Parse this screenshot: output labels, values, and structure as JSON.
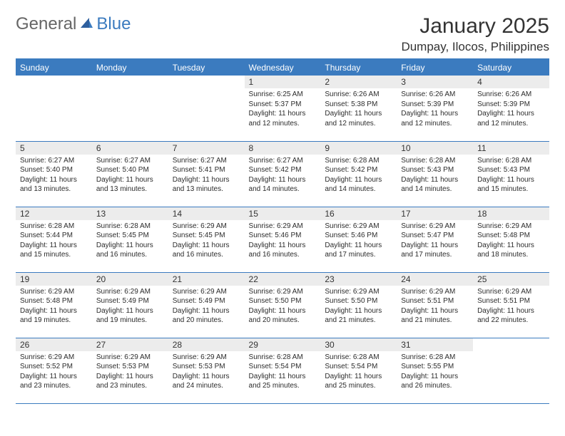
{
  "logo": {
    "general": "General",
    "blue": "Blue"
  },
  "title": "January 2025",
  "location": "Dumpay, Ilocos, Philippines",
  "colors": {
    "header_bg": "#3b7bbf",
    "header_text": "#ffffff",
    "daynum_bg": "#ececec",
    "border": "#3b7bbf",
    "logo_blue": "#3b7bbf",
    "logo_gray": "#666666"
  },
  "day_headers": [
    "Sunday",
    "Monday",
    "Tuesday",
    "Wednesday",
    "Thursday",
    "Friday",
    "Saturday"
  ],
  "weeks": [
    [
      {
        "n": "",
        "sr": "",
        "ss": "",
        "dl": ""
      },
      {
        "n": "",
        "sr": "",
        "ss": "",
        "dl": ""
      },
      {
        "n": "",
        "sr": "",
        "ss": "",
        "dl": ""
      },
      {
        "n": "1",
        "sr": "Sunrise: 6:25 AM",
        "ss": "Sunset: 5:37 PM",
        "dl": "Daylight: 11 hours and 12 minutes."
      },
      {
        "n": "2",
        "sr": "Sunrise: 6:26 AM",
        "ss": "Sunset: 5:38 PM",
        "dl": "Daylight: 11 hours and 12 minutes."
      },
      {
        "n": "3",
        "sr": "Sunrise: 6:26 AM",
        "ss": "Sunset: 5:39 PM",
        "dl": "Daylight: 11 hours and 12 minutes."
      },
      {
        "n": "4",
        "sr": "Sunrise: 6:26 AM",
        "ss": "Sunset: 5:39 PM",
        "dl": "Daylight: 11 hours and 12 minutes."
      }
    ],
    [
      {
        "n": "5",
        "sr": "Sunrise: 6:27 AM",
        "ss": "Sunset: 5:40 PM",
        "dl": "Daylight: 11 hours and 13 minutes."
      },
      {
        "n": "6",
        "sr": "Sunrise: 6:27 AM",
        "ss": "Sunset: 5:40 PM",
        "dl": "Daylight: 11 hours and 13 minutes."
      },
      {
        "n": "7",
        "sr": "Sunrise: 6:27 AM",
        "ss": "Sunset: 5:41 PM",
        "dl": "Daylight: 11 hours and 13 minutes."
      },
      {
        "n": "8",
        "sr": "Sunrise: 6:27 AM",
        "ss": "Sunset: 5:42 PM",
        "dl": "Daylight: 11 hours and 14 minutes."
      },
      {
        "n": "9",
        "sr": "Sunrise: 6:28 AM",
        "ss": "Sunset: 5:42 PM",
        "dl": "Daylight: 11 hours and 14 minutes."
      },
      {
        "n": "10",
        "sr": "Sunrise: 6:28 AM",
        "ss": "Sunset: 5:43 PM",
        "dl": "Daylight: 11 hours and 14 minutes."
      },
      {
        "n": "11",
        "sr": "Sunrise: 6:28 AM",
        "ss": "Sunset: 5:43 PM",
        "dl": "Daylight: 11 hours and 15 minutes."
      }
    ],
    [
      {
        "n": "12",
        "sr": "Sunrise: 6:28 AM",
        "ss": "Sunset: 5:44 PM",
        "dl": "Daylight: 11 hours and 15 minutes."
      },
      {
        "n": "13",
        "sr": "Sunrise: 6:28 AM",
        "ss": "Sunset: 5:45 PM",
        "dl": "Daylight: 11 hours and 16 minutes."
      },
      {
        "n": "14",
        "sr": "Sunrise: 6:29 AM",
        "ss": "Sunset: 5:45 PM",
        "dl": "Daylight: 11 hours and 16 minutes."
      },
      {
        "n": "15",
        "sr": "Sunrise: 6:29 AM",
        "ss": "Sunset: 5:46 PM",
        "dl": "Daylight: 11 hours and 16 minutes."
      },
      {
        "n": "16",
        "sr": "Sunrise: 6:29 AM",
        "ss": "Sunset: 5:46 PM",
        "dl": "Daylight: 11 hours and 17 minutes."
      },
      {
        "n": "17",
        "sr": "Sunrise: 6:29 AM",
        "ss": "Sunset: 5:47 PM",
        "dl": "Daylight: 11 hours and 17 minutes."
      },
      {
        "n": "18",
        "sr": "Sunrise: 6:29 AM",
        "ss": "Sunset: 5:48 PM",
        "dl": "Daylight: 11 hours and 18 minutes."
      }
    ],
    [
      {
        "n": "19",
        "sr": "Sunrise: 6:29 AM",
        "ss": "Sunset: 5:48 PM",
        "dl": "Daylight: 11 hours and 19 minutes."
      },
      {
        "n": "20",
        "sr": "Sunrise: 6:29 AM",
        "ss": "Sunset: 5:49 PM",
        "dl": "Daylight: 11 hours and 19 minutes."
      },
      {
        "n": "21",
        "sr": "Sunrise: 6:29 AM",
        "ss": "Sunset: 5:49 PM",
        "dl": "Daylight: 11 hours and 20 minutes."
      },
      {
        "n": "22",
        "sr": "Sunrise: 6:29 AM",
        "ss": "Sunset: 5:50 PM",
        "dl": "Daylight: 11 hours and 20 minutes."
      },
      {
        "n": "23",
        "sr": "Sunrise: 6:29 AM",
        "ss": "Sunset: 5:50 PM",
        "dl": "Daylight: 11 hours and 21 minutes."
      },
      {
        "n": "24",
        "sr": "Sunrise: 6:29 AM",
        "ss": "Sunset: 5:51 PM",
        "dl": "Daylight: 11 hours and 21 minutes."
      },
      {
        "n": "25",
        "sr": "Sunrise: 6:29 AM",
        "ss": "Sunset: 5:51 PM",
        "dl": "Daylight: 11 hours and 22 minutes."
      }
    ],
    [
      {
        "n": "26",
        "sr": "Sunrise: 6:29 AM",
        "ss": "Sunset: 5:52 PM",
        "dl": "Daylight: 11 hours and 23 minutes."
      },
      {
        "n": "27",
        "sr": "Sunrise: 6:29 AM",
        "ss": "Sunset: 5:53 PM",
        "dl": "Daylight: 11 hours and 23 minutes."
      },
      {
        "n": "28",
        "sr": "Sunrise: 6:29 AM",
        "ss": "Sunset: 5:53 PM",
        "dl": "Daylight: 11 hours and 24 minutes."
      },
      {
        "n": "29",
        "sr": "Sunrise: 6:28 AM",
        "ss": "Sunset: 5:54 PM",
        "dl": "Daylight: 11 hours and 25 minutes."
      },
      {
        "n": "30",
        "sr": "Sunrise: 6:28 AM",
        "ss": "Sunset: 5:54 PM",
        "dl": "Daylight: 11 hours and 25 minutes."
      },
      {
        "n": "31",
        "sr": "Sunrise: 6:28 AM",
        "ss": "Sunset: 5:55 PM",
        "dl": "Daylight: 11 hours and 26 minutes."
      },
      {
        "n": "",
        "sr": "",
        "ss": "",
        "dl": ""
      }
    ]
  ]
}
